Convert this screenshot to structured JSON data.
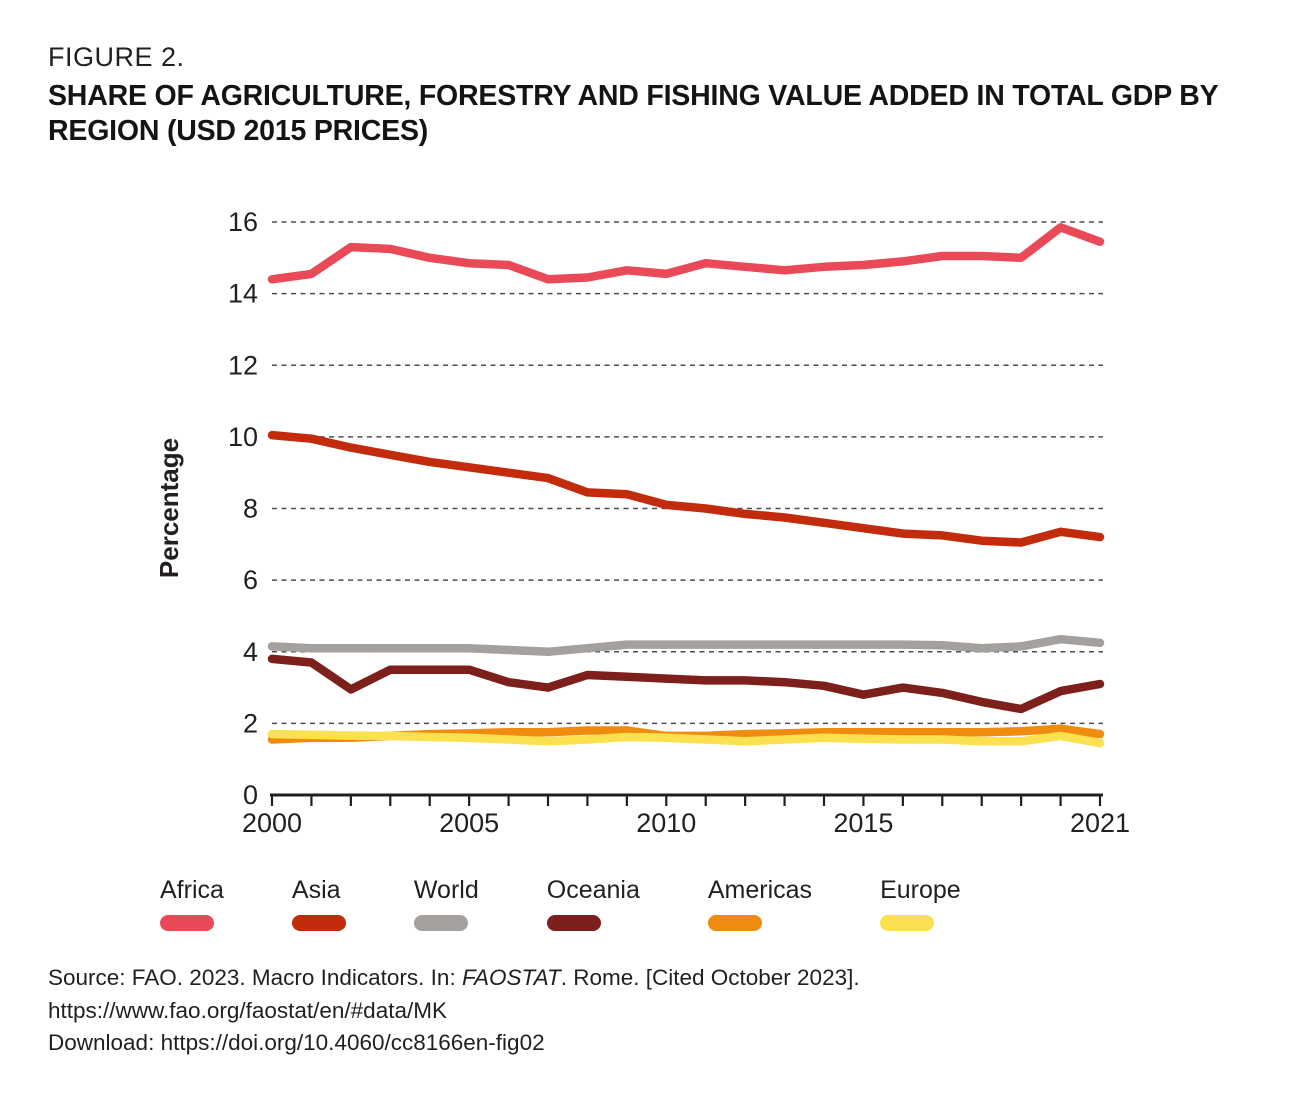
{
  "figure": {
    "label": "FIGURE 2.",
    "title": "SHARE OF AGRICULTURE, FORESTRY AND FISHING VALUE ADDED IN TOTAL GDP BY REGION (USD 2015 PRICES)"
  },
  "chart_data": {
    "type": "line",
    "title": "Share of agriculture, forestry and fishing value added in total GDP by region (USD 2015 prices)",
    "xlabel": "",
    "ylabel": "Percentage",
    "ylim": [
      0,
      16
    ],
    "yticks": [
      0,
      2,
      4,
      6,
      8,
      10,
      12,
      14,
      16
    ],
    "xticks_labeled": [
      2000,
      2005,
      2010,
      2015,
      2021
    ],
    "grid": "horizontal-dashed",
    "legend_position": "bottom",
    "x": [
      2000,
      2001,
      2002,
      2003,
      2004,
      2005,
      2006,
      2007,
      2008,
      2009,
      2010,
      2011,
      2012,
      2013,
      2014,
      2015,
      2016,
      2017,
      2018,
      2019,
      2020,
      2021
    ],
    "series": [
      {
        "name": "Africa",
        "color": "#ea4a57",
        "values": [
          14.4,
          14.55,
          15.3,
          15.25,
          15.0,
          14.85,
          14.8,
          14.4,
          14.45,
          14.65,
          14.55,
          14.85,
          14.75,
          14.65,
          14.75,
          14.8,
          14.9,
          15.05,
          15.05,
          15.0,
          15.85,
          15.45
        ]
      },
      {
        "name": "Asia",
        "color": "#c22c0d",
        "values": [
          10.05,
          9.95,
          9.7,
          9.5,
          9.3,
          9.15,
          9.0,
          8.85,
          8.45,
          8.4,
          8.1,
          8.0,
          7.85,
          7.75,
          7.6,
          7.45,
          7.3,
          7.25,
          7.1,
          7.05,
          7.35,
          7.2
        ]
      },
      {
        "name": "World",
        "color": "#a3a09d",
        "values": [
          4.15,
          4.1,
          4.1,
          4.1,
          4.1,
          4.1,
          4.05,
          4.0,
          4.1,
          4.2,
          4.2,
          4.2,
          4.2,
          4.2,
          4.2,
          4.2,
          4.2,
          4.18,
          4.1,
          4.15,
          4.35,
          4.25
        ]
      },
      {
        "name": "Oceania",
        "color": "#7d201c",
        "values": [
          3.8,
          3.7,
          2.95,
          3.5,
          3.5,
          3.5,
          3.15,
          3.0,
          3.35,
          3.3,
          3.25,
          3.2,
          3.2,
          3.15,
          3.05,
          2.8,
          3.0,
          2.85,
          2.6,
          2.4,
          2.9,
          3.1
        ]
      },
      {
        "name": "Americas",
        "color": "#ef8b0f",
        "values": [
          1.55,
          1.6,
          1.6,
          1.65,
          1.7,
          1.72,
          1.75,
          1.75,
          1.8,
          1.8,
          1.65,
          1.65,
          1.7,
          1.72,
          1.75,
          1.75,
          1.75,
          1.75,
          1.75,
          1.78,
          1.85,
          1.7
        ]
      },
      {
        "name": "Europe",
        "color": "#fbe14f",
        "values": [
          1.7,
          1.68,
          1.66,
          1.65,
          1.62,
          1.6,
          1.55,
          1.5,
          1.55,
          1.62,
          1.6,
          1.55,
          1.5,
          1.55,
          1.6,
          1.57,
          1.55,
          1.55,
          1.5,
          1.5,
          1.65,
          1.45
        ]
      }
    ]
  },
  "source": {
    "line1_prefix": "Source: FAO. 2023. Macro Indicators. In: ",
    "line1_italic": "FAOSTAT",
    "line1_suffix": ". Rome. [Cited October 2023].",
    "line2": "https://www.fao.org/faostat/en/#data/MK",
    "line3": "Download: https://doi.org/10.4060/cc8166en-fig02"
  }
}
